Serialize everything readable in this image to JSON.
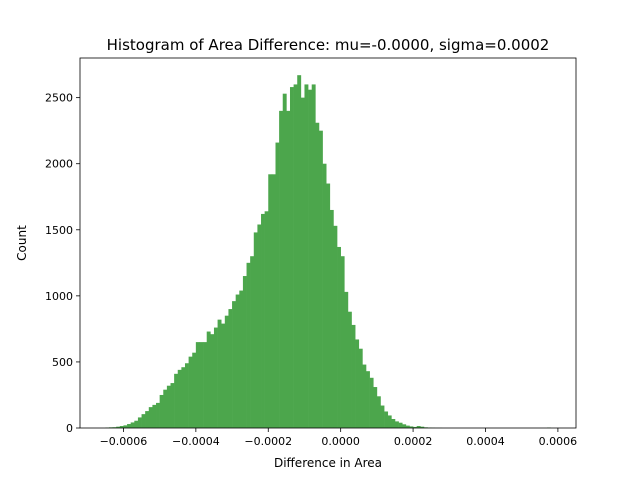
{
  "chart_data": {
    "type": "bar",
    "subtype": "histogram",
    "title": "Histogram of Area Difference: mu=-0.0000, sigma=0.0002",
    "xlabel": "Difference in Area",
    "ylabel": "Count",
    "xlim": [
      -0.00072,
      0.00065
    ],
    "ylim": [
      0,
      2800
    ],
    "xticks": [
      -0.0006,
      -0.0004,
      -0.0002,
      0.0,
      0.0002,
      0.0004,
      0.0006
    ],
    "xtick_labels": [
      "−0.0006",
      "−0.0004",
      "−0.0002",
      "0.0000",
      "0.0002",
      "0.0004",
      "0.0006"
    ],
    "yticks": [
      0,
      500,
      1000,
      1500,
      2000,
      2500
    ],
    "ytick_labels": [
      "0",
      "500",
      "1000",
      "1500",
      "2000",
      "2500"
    ],
    "bar_color": "#4ca64c",
    "grid": false,
    "bin_start": -0.00065,
    "bin_width": 1e-05,
    "counts": [
      3,
      5,
      6,
      10,
      15,
      20,
      30,
      42,
      55,
      80,
      105,
      128,
      158,
      175,
      190,
      250,
      290,
      320,
      340,
      410,
      440,
      460,
      490,
      540,
      570,
      650,
      650,
      650,
      730,
      710,
      760,
      820,
      790,
      850,
      900,
      960,
      1010,
      1040,
      1150,
      1250,
      1300,
      1480,
      1540,
      1620,
      1640,
      1920,
      1920,
      2160,
      2400,
      2530,
      2400,
      2580,
      2600,
      2670,
      2500,
      2600,
      2560,
      2600,
      2310,
      2250,
      2000,
      1850,
      1650,
      1530,
      1370,
      1300,
      1030,
      880,
      780,
      670,
      600,
      480,
      430,
      380,
      310,
      240,
      170,
      125,
      95,
      68,
      50,
      40,
      28,
      18,
      12,
      8,
      15,
      10,
      5,
      3,
      2,
      1,
      1,
      0,
      0,
      0,
      0,
      0,
      0,
      0,
      0,
      0,
      0,
      0,
      0,
      0,
      0,
      0,
      0,
      0,
      0,
      0,
      0,
      0,
      0,
      0,
      0,
      0,
      0,
      0,
      0,
      0,
      3
    ]
  }
}
